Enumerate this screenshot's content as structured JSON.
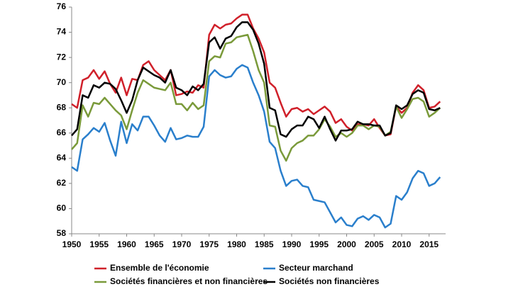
{
  "chart_data": {
    "type": "line",
    "x": [
      1950,
      1951,
      1952,
      1953,
      1954,
      1955,
      1956,
      1957,
      1958,
      1959,
      1960,
      1961,
      1962,
      1963,
      1964,
      1965,
      1966,
      1967,
      1968,
      1969,
      1970,
      1971,
      1972,
      1973,
      1974,
      1975,
      1976,
      1977,
      1978,
      1979,
      1980,
      1981,
      1982,
      1983,
      1984,
      1985,
      1986,
      1987,
      1988,
      1989,
      1990,
      1991,
      1992,
      1993,
      1994,
      1995,
      1996,
      1997,
      1998,
      1999,
      2000,
      2001,
      2002,
      2003,
      2004,
      2005,
      2006,
      2007,
      2008,
      2009,
      2010,
      2011,
      2012,
      2013,
      2014,
      2015,
      2016,
      2017
    ],
    "series": [
      {
        "name": "Ensemble de l'économie",
        "color": "#d0202a",
        "values": [
          68.3,
          68.0,
          70.2,
          70.4,
          71.0,
          70.3,
          70.9,
          69.9,
          69.2,
          70.4,
          69.0,
          70.3,
          70.2,
          71.4,
          71.7,
          71.0,
          70.6,
          70.2,
          71.0,
          69.0,
          69.1,
          69.3,
          69.2,
          69.8,
          69.6,
          73.8,
          74.6,
          74.3,
          74.6,
          74.7,
          75.1,
          75.4,
          75.4,
          74.3,
          73.5,
          72.4,
          70.0,
          69.6,
          68.4,
          67.3,
          67.9,
          68.0,
          67.7,
          67.9,
          67.5,
          67.8,
          68.1,
          67.7,
          66.8,
          67.1,
          66.5,
          66.2,
          66.7,
          66.7,
          66.6,
          67.1,
          66.4,
          65.8,
          65.9,
          68.1,
          67.6,
          68.0,
          69.2,
          69.8,
          69.4,
          68.0,
          68.1,
          68.5
        ]
      },
      {
        "name": "Secteur marchand",
        "color": "#2a7fcc",
        "values": [
          63.3,
          63.0,
          65.5,
          65.9,
          66.4,
          66.1,
          66.8,
          65.4,
          64.2,
          66.9,
          65.2,
          66.7,
          66.2,
          67.3,
          67.3,
          66.6,
          65.8,
          65.3,
          66.4,
          65.5,
          65.6,
          65.8,
          65.7,
          65.7,
          66.5,
          70.5,
          71.0,
          70.6,
          70.4,
          70.5,
          71.1,
          71.4,
          71.2,
          70.0,
          69.0,
          67.7,
          65.3,
          64.8,
          63.0,
          61.8,
          62.2,
          62.3,
          61.8,
          61.7,
          60.7,
          60.6,
          60.5,
          59.7,
          58.9,
          59.3,
          58.7,
          58.6,
          59.2,
          59.4,
          59.1,
          59.5,
          59.3,
          58.5,
          58.8,
          61.0,
          60.7,
          61.3,
          62.4,
          63.0,
          62.8,
          61.8,
          62.0,
          62.5
        ]
      },
      {
        "name": "Sociétés financières et non financières",
        "color": "#7a9a3a",
        "values": [
          64.7,
          65.2,
          68.2,
          67.3,
          68.4,
          68.3,
          68.8,
          68.3,
          67.8,
          67.4,
          66.3,
          67.8,
          69.2,
          70.2,
          69.9,
          69.6,
          69.5,
          69.4,
          70.0,
          68.3,
          68.3,
          67.8,
          68.4,
          67.9,
          68.2,
          71.7,
          72.1,
          72.0,
          73.1,
          73.2,
          73.6,
          73.7,
          73.8,
          72.5,
          71.0,
          70.0,
          66.6,
          66.5,
          64.6,
          63.8,
          64.8,
          65.2,
          65.4,
          65.8,
          65.8,
          66.3,
          67.1,
          66.5,
          65.7,
          66.0,
          65.7,
          66.0,
          66.6,
          66.6,
          66.3,
          66.6,
          66.5,
          65.8,
          66.1,
          68.1,
          67.2,
          67.9,
          68.7,
          68.8,
          68.5,
          67.3,
          67.6,
          68.0
        ]
      },
      {
        "name": "Sociétés non financières",
        "color": "#000000",
        "values": [
          65.8,
          66.3,
          69.0,
          68.8,
          69.8,
          69.6,
          70.0,
          69.9,
          69.5,
          68.6,
          67.6,
          68.6,
          70.2,
          71.2,
          70.9,
          70.6,
          70.4,
          70.0,
          71.0,
          69.6,
          69.4,
          69.0,
          69.7,
          69.4,
          69.9,
          73.2,
          73.6,
          72.7,
          73.5,
          73.7,
          74.4,
          74.8,
          74.8,
          74.2,
          73.1,
          71.5,
          68.0,
          67.8,
          65.9,
          65.7,
          66.3,
          66.6,
          66.6,
          67.3,
          67.1,
          66.4,
          67.3,
          66.3,
          65.4,
          66.2,
          66.2,
          66.3,
          66.9,
          66.7,
          66.7,
          66.6,
          66.6,
          65.8,
          66.0,
          68.2,
          67.9,
          68.2,
          69.1,
          69.4,
          69.2,
          67.9,
          67.8,
          68.0
        ]
      }
    ],
    "xlim": [
      1950,
      2018
    ],
    "xticks": [
      1950,
      1955,
      1960,
      1965,
      1970,
      1975,
      1980,
      1985,
      1990,
      1995,
      2000,
      2005,
      2010,
      2015
    ],
    "ylim": [
      58,
      76
    ],
    "yticks": [
      58,
      60,
      62,
      64,
      66,
      68,
      70,
      72,
      74,
      76
    ],
    "grid": false,
    "legend": "bottom"
  }
}
